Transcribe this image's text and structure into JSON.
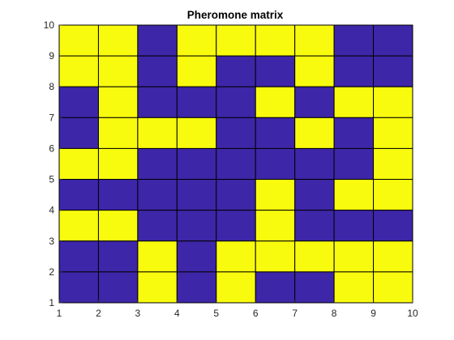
{
  "chart_data": {
    "type": "heatmap",
    "title": "Pheromone matrix",
    "xlabel": "",
    "ylabel": "",
    "xlim": [
      1,
      10
    ],
    "ylim": [
      1,
      10
    ],
    "xticks": [
      "1",
      "2",
      "3",
      "4",
      "5",
      "6",
      "7",
      "8",
      "9",
      "10"
    ],
    "yticks": [
      "1",
      "2",
      "3",
      "4",
      "5",
      "6",
      "7",
      "8",
      "9",
      "10"
    ],
    "grid": false,
    "colors": {
      "high": "#f9fb0e",
      "low": "#3e26a8"
    },
    "matrix_rows_top_to_bottom": [
      [
        1,
        1,
        0,
        1,
        1,
        1,
        1,
        0,
        0
      ],
      [
        1,
        1,
        0,
        1,
        0,
        0,
        1,
        0,
        0
      ],
      [
        0,
        1,
        0,
        0,
        0,
        1,
        0,
        1,
        1
      ],
      [
        0,
        1,
        1,
        1,
        0,
        0,
        1,
        0,
        1
      ],
      [
        1,
        1,
        0,
        0,
        0,
        0,
        0,
        0,
        1
      ],
      [
        0,
        0,
        0,
        0,
        0,
        1,
        0,
        1,
        1
      ],
      [
        1,
        1,
        0,
        0,
        0,
        1,
        0,
        0,
        0
      ],
      [
        0,
        0,
        1,
        0,
        1,
        1,
        1,
        1,
        1
      ],
      [
        0,
        0,
        1,
        0,
        1,
        0,
        0,
        1,
        1
      ]
    ]
  }
}
